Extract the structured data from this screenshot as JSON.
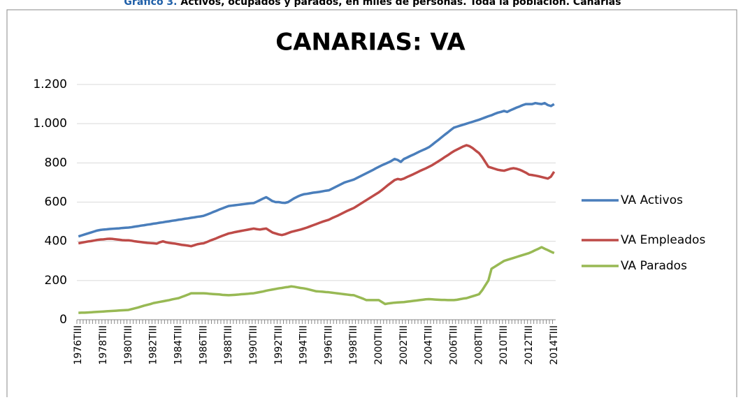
{
  "header": {
    "caption_label": "Gráfico 3.",
    "caption": "Activos, ocupados y parados, en miles de personas. Toda la población. Canarias"
  },
  "chart_data": {
    "type": "line",
    "title": "CANARIAS: VA",
    "categories": [
      "1976TIII",
      null,
      null,
      null,
      null,
      null,
      null,
      null,
      "1978TIII",
      null,
      null,
      null,
      null,
      null,
      null,
      null,
      "1980TIII",
      null,
      null,
      null,
      null,
      null,
      null,
      null,
      "1982TIII",
      null,
      null,
      null,
      null,
      null,
      null,
      null,
      "1984TIII",
      null,
      null,
      null,
      null,
      null,
      null,
      null,
      "1986TIII",
      null,
      null,
      null,
      null,
      null,
      null,
      null,
      "1988TIII",
      null,
      null,
      null,
      null,
      null,
      null,
      null,
      "1990TIII",
      null,
      null,
      null,
      null,
      null,
      null,
      null,
      "1992TIII",
      null,
      null,
      null,
      null,
      null,
      null,
      null,
      "1994TIII",
      null,
      null,
      null,
      null,
      null,
      null,
      null,
      "1996TIII",
      null,
      null,
      null,
      null,
      null,
      null,
      null,
      "1998TIII",
      null,
      null,
      null,
      null,
      null,
      null,
      null,
      "2000TIII",
      null,
      null,
      null,
      null,
      null,
      null,
      null,
      "2002TIII",
      null,
      null,
      null,
      null,
      null,
      null,
      null,
      "2004TIII",
      null,
      null,
      null,
      null,
      null,
      null,
      null,
      "2006TIII",
      null,
      null,
      null,
      null,
      null,
      null,
      null,
      "2008TIII",
      null,
      null,
      null,
      null,
      null,
      null,
      null,
      "2010TIII",
      null,
      null,
      null,
      null,
      null,
      null,
      null,
      "2012TIII",
      null,
      null,
      null,
      null,
      null,
      null,
      null,
      "2014TIII"
    ],
    "series": [
      {
        "name": "VA Activos",
        "color": "#4a7ebb",
        "values": [
          425,
          430,
          435,
          440,
          445,
          450,
          455,
          458,
          460,
          461,
          463,
          464,
          465,
          466,
          468,
          469,
          470,
          472,
          475,
          477,
          480,
          482,
          485,
          487,
          490,
          492,
          495,
          497,
          500,
          502,
          505,
          507,
          510,
          512,
          515,
          517,
          520,
          522,
          525,
          527,
          530,
          536,
          542,
          549,
          555,
          562,
          568,
          574,
          580,
          582,
          584,
          586,
          588,
          590,
          592,
          594,
          595,
          602,
          610,
          618,
          625,
          615,
          605,
          600,
          600,
          597,
          596,
          600,
          610,
          620,
          628,
          635,
          640,
          642,
          645,
          648,
          650,
          652,
          655,
          658,
          660,
          668,
          676,
          684,
          692,
          700,
          705,
          710,
          715,
          723,
          731,
          739,
          747,
          755,
          763,
          772,
          780,
          788,
          795,
          802,
          810,
          820,
          815,
          805,
          820,
          827,
          835,
          842,
          850,
          858,
          865,
          872,
          880,
          892,
          905,
          917,
          930,
          943,
          955,
          968,
          980,
          985,
          990,
          995,
          1000,
          1005,
          1010,
          1015,
          1020,
          1026,
          1032,
          1038,
          1043,
          1050,
          1056,
          1060,
          1065,
          1060,
          1068,
          1075,
          1082,
          1088,
          1095,
          1100,
          1100,
          1100,
          1105,
          1102,
          1100,
          1105,
          1095,
          1090,
          1100
        ]
      },
      {
        "name": "VA Empleados",
        "color": "#be4b48",
        "values": [
          390,
          393,
          396,
          399,
          401,
          404,
          407,
          409,
          410,
          412,
          413,
          412,
          410,
          408,
          406,
          405,
          405,
          403,
          400,
          398,
          396,
          394,
          392,
          391,
          390,
          388,
          395,
          400,
          395,
          392,
          390,
          388,
          385,
          382,
          380,
          378,
          375,
          380,
          385,
          388,
          390,
          396,
          403,
          409,
          415,
          422,
          428,
          434,
          440,
          443,
          447,
          450,
          453,
          456,
          459,
          462,
          465,
          462,
          460,
          463,
          465,
          455,
          445,
          440,
          435,
          432,
          436,
          442,
          448,
          452,
          456,
          460,
          465,
          470,
          476,
          482,
          488,
          494,
          500,
          505,
          510,
          518,
          525,
          532,
          540,
          548,
          556,
          563,
          570,
          580,
          590,
          600,
          610,
          620,
          630,
          640,
          650,
          662,
          675,
          688,
          700,
          712,
          718,
          715,
          720,
          728,
          735,
          742,
          750,
          758,
          765,
          772,
          780,
          788,
          798,
          808,
          818,
          829,
          839,
          850,
          860,
          868,
          876,
          884,
          890,
          885,
          875,
          862,
          850,
          830,
          805,
          780,
          775,
          770,
          765,
          762,
          760,
          765,
          770,
          773,
          770,
          765,
          758,
          750,
          740,
          738,
          735,
          732,
          728,
          724,
          720,
          730,
          755
        ]
      },
      {
        "name": "VA Parados",
        "color": "#98b954",
        "values": [
          35,
          36,
          36,
          37,
          38,
          39,
          40,
          41,
          42,
          43,
          44,
          45,
          46,
          47,
          48,
          49,
          50,
          54,
          58,
          62,
          67,
          72,
          76,
          80,
          85,
          88,
          91,
          94,
          97,
          100,
          104,
          107,
          110,
          116,
          122,
          128,
          135,
          135,
          135,
          135,
          135,
          134,
          132,
          131,
          130,
          129,
          127,
          126,
          125,
          126,
          127,
          128,
          130,
          131,
          132,
          134,
          135,
          138,
          141,
          144,
          148,
          151,
          154,
          157,
          160,
          162,
          165,
          167,
          170,
          168,
          165,
          162,
          160,
          157,
          153,
          149,
          145,
          144,
          143,
          141,
          140,
          138,
          136,
          134,
          132,
          130,
          128,
          126,
          125,
          119,
          113,
          107,
          100,
          100,
          100,
          100,
          100,
          90,
          80,
          83,
          85,
          87,
          88,
          89,
          90,
          92,
          94,
          96,
          98,
          100,
          102,
          104,
          105,
          104,
          103,
          102,
          101,
          101,
          100,
          100,
          100,
          102,
          105,
          108,
          110,
          115,
          120,
          125,
          130,
          150,
          175,
          200,
          260,
          270,
          280,
          290,
          300,
          305,
          310,
          315,
          320,
          325,
          330,
          335,
          340,
          347,
          355,
          362,
          370,
          362,
          355,
          347,
          340
        ]
      }
    ],
    "ylim": [
      0,
      1200
    ],
    "yticks": [
      0,
      200,
      400,
      600,
      800,
      {
        "value": 1000,
        "label": "1.000"
      },
      {
        "value": 1200,
        "label": "1.200"
      }
    ],
    "grid": true,
    "legend": "right"
  }
}
